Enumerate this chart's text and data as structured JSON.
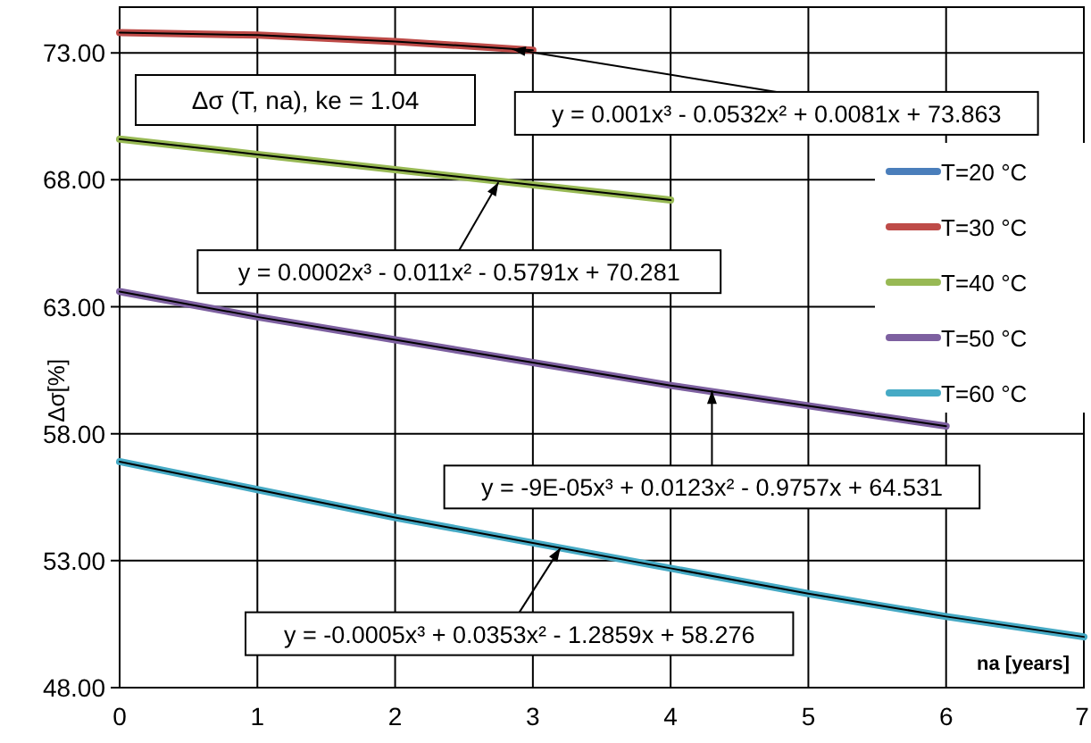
{
  "chart_data": {
    "type": "line",
    "title": "Δσ (T, na),  ke = 1.04",
    "xlabel": "na [years]",
    "ylabel": "Δσ[%]",
    "xlim": [
      0,
      7
    ],
    "xticks": [
      0,
      1,
      2,
      3,
      4,
      5,
      6,
      7
    ],
    "ylim": [
      48,
      74.8
    ],
    "yticks": [
      {
        "value": 48,
        "label": "48.00"
      },
      {
        "value": 53,
        "label": "53.00"
      },
      {
        "value": 58,
        "label": "58.00"
      },
      {
        "value": 63,
        "label": "63.00"
      },
      {
        "value": 68,
        "label": "68.00"
      },
      {
        "value": 73,
        "label": "73.00"
      }
    ],
    "grid": true,
    "legend": "right",
    "marker": "none",
    "line_style": "solid",
    "series": [
      {
        "name": "T=20 °C",
        "color": "#4a7ebb",
        "values": [
          null,
          null,
          null,
          null,
          null,
          null,
          null,
          null
        ]
      },
      {
        "name": "T=30 °C",
        "color": "#be4b48",
        "x": [
          0,
          1,
          2,
          3
        ],
        "values": [
          73.8,
          73.7,
          73.45,
          73.1
        ]
      },
      {
        "name": "T=40 °C",
        "color": "#98b954",
        "x": [
          0,
          1,
          2,
          3,
          4
        ],
        "values": [
          69.6,
          69.0,
          68.4,
          67.8,
          67.2
        ]
      },
      {
        "name": "T=50 °C",
        "color": "#7d60a0",
        "x": [
          0,
          1,
          2,
          3,
          4,
          5,
          6
        ],
        "values": [
          63.6,
          62.6,
          61.7,
          60.8,
          59.9,
          59.1,
          58.3
        ]
      },
      {
        "name": "T=60 °C",
        "color": "#46aac5",
        "x": [
          0,
          1,
          2,
          3,
          4,
          5,
          6,
          7
        ],
        "values": [
          56.9,
          55.8,
          54.7,
          53.7,
          52.7,
          51.7,
          50.8,
          50.0
        ]
      },
      {
        "color": "#000000",
        "x": [
          0,
          1,
          2,
          3
        ],
        "values": [
          73.8,
          73.7,
          73.45,
          73.1
        ]
      },
      {
        "color": "#000000",
        "x": [
          0,
          1,
          2,
          3,
          4
        ],
        "values": [
          69.6,
          69.0,
          68.4,
          67.8,
          67.2
        ]
      },
      {
        "color": "#000000",
        "x": [
          0,
          1,
          2,
          3,
          4,
          5,
          6
        ],
        "values": [
          63.6,
          62.6,
          61.7,
          60.8,
          59.9,
          59.1,
          58.3
        ]
      },
      {
        "color": "#000000",
        "x": [
          0,
          1,
          2,
          3,
          4,
          5,
          6,
          7
        ],
        "values": [
          56.9,
          55.8,
          54.7,
          53.7,
          52.7,
          51.7,
          50.8,
          50.0
        ]
      }
    ],
    "annotations": [
      {
        "text": "y = 0.001x³ - 0.0532x² + 0.0081x + 73.863",
        "x": 2.85,
        "y": 73.15
      },
      {
        "text": "y = 0.0002x³ - 0.011x² - 0.5791x + 70.281",
        "x": 2.75,
        "y": 67.9
      },
      {
        "text": "y = -9E-05x³ + 0.0123x² - 0.9757x + 64.531",
        "x": 4.3,
        "y": 59.7
      },
      {
        "text": "y = -0.0005x³ + 0.0353x² - 1.2859x + 58.276",
        "x": 3.2,
        "y": 53.5
      }
    ]
  }
}
